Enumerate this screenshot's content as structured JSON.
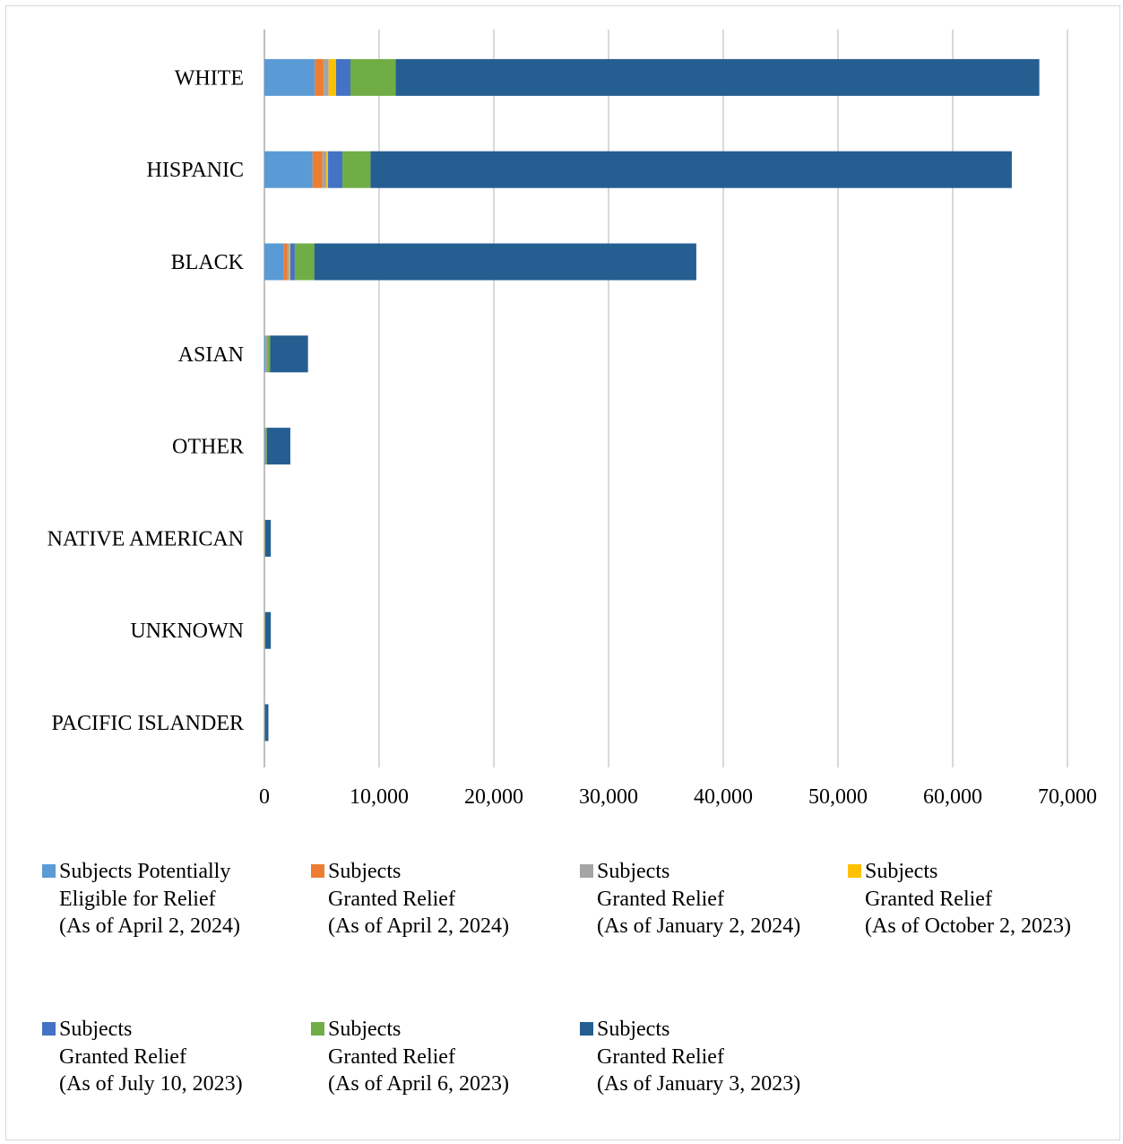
{
  "chart_data": {
    "type": "bar",
    "orientation": "horizontal",
    "stacked": true,
    "categories": [
      "WHITE",
      "HISPANIC",
      "BLACK",
      "ASIAN",
      "OTHER",
      "NATIVE AMERICAN",
      "UNKNOWN",
      "PACIFIC ISLANDER"
    ],
    "series": [
      {
        "name": "Subjects Potentially Eligible for Relief (As of April 2, 2024)",
        "legend_lines": "Subjects Potentially\nEligible for Relief\n(As of April 2, 2024)",
        "color": "#5b9bd5",
        "values": [
          4400,
          4200,
          1700,
          100,
          50,
          20,
          20,
          10
        ]
      },
      {
        "name": "Subjects Granted Relief (As of April 2, 2024)",
        "legend_lines": "Subjects\nGranted Relief\n(As of April 2, 2024)",
        "color": "#ed7d31",
        "values": [
          750,
          850,
          300,
          50,
          20,
          10,
          10,
          5
        ]
      },
      {
        "name": "Subjects Granted Relief (As of January 2, 2024)",
        "legend_lines": "Subjects\nGranted Relief\n(As of January 2, 2024)",
        "color": "#a5a5a5",
        "values": [
          450,
          350,
          150,
          30,
          10,
          5,
          5,
          5
        ]
      },
      {
        "name": "Subjects Granted Relief (As of October 2, 2023)",
        "legend_lines": "Subjects\nGranted Relief\n(As of October 2, 2023)",
        "color": "#ffc000",
        "values": [
          650,
          150,
          100,
          20,
          10,
          5,
          5,
          5
        ]
      },
      {
        "name": "Subjects Granted Relief (As of July 10, 2023)",
        "legend_lines": "Subjects\nGranted Relief\n(As of July 10, 2023)",
        "color": "#4472c4",
        "values": [
          1250,
          1250,
          400,
          50,
          20,
          10,
          10,
          5
        ]
      },
      {
        "name": "Subjects Granted Relief (As of April 6, 2023)",
        "legend_lines": "Subjects\nGranted Relief\n(As of April 6, 2023)",
        "color": "#70ad47",
        "values": [
          3950,
          2450,
          1700,
          250,
          100,
          30,
          30,
          20
        ]
      },
      {
        "name": "Subjects Granted Relief (As of January 3, 2023)",
        "legend_lines": "Subjects\nGranted Relief\n(As of January 3, 2023)",
        "color": "#255e91",
        "values": [
          56100,
          55900,
          33300,
          3300,
          2050,
          480,
          480,
          300
        ]
      }
    ],
    "xlim": [
      0,
      70000
    ],
    "xticks": [
      0,
      10000,
      20000,
      30000,
      40000,
      50000,
      60000,
      70000
    ],
    "xtick_labels": [
      "0",
      "10,000",
      "20,000",
      "30,000",
      "40,000",
      "50,000",
      "60,000",
      "70,000"
    ],
    "grid": "vertical",
    "legend_position": "bottom",
    "title": "",
    "xlabel": "",
    "ylabel": ""
  }
}
